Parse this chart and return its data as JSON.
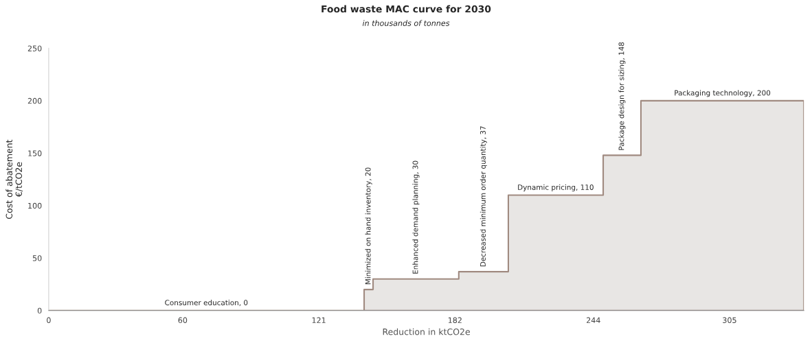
{
  "chart_data": {
    "type": "area",
    "title": "Food waste MAC curve for 2030",
    "subtitle": "in thousands of tonnes",
    "xlabel": "Reduction in ktCO2e",
    "ylabel": "Cost of abatement\n€/tCO2e",
    "series": [
      {
        "color": "#e8e6e4",
        "x": [
          0,
          141.3,
          145.3,
          183.7,
          205.9,
          248.4,
          265.3,
          338.3
        ],
        "values": [
          0,
          20,
          30,
          37,
          110,
          148,
          200,
          200
        ]
      }
    ],
    "xlim": [
      0,
      338.3
    ],
    "ylim": [
      0,
      250
    ],
    "xticks": [
      0,
      60,
      121,
      182,
      244,
      305
    ],
    "yticks": [
      0,
      50,
      100,
      150,
      200,
      250
    ],
    "grid": false,
    "legend": false,
    "annotations": [
      {
        "text": "Consumer education, 0",
        "x": 70.6,
        "y": 0
      },
      {
        "text": "Minimized on hand inventory, 20",
        "x": 143.3,
        "y": 20
      },
      {
        "text": "Enhanced demand planning, 30",
        "x": 164.5,
        "y": 30
      },
      {
        "text": "Decreased minimum order quantity, 37",
        "x": 194.8,
        "y": 37
      },
      {
        "text": "Dynamic pricing, 110",
        "x": 227.1,
        "y": 110
      },
      {
        "text": "Package design for sizing, 148",
        "x": 256.8,
        "y": 148
      },
      {
        "text": "Packaging technology, 200",
        "x": 301.8,
        "y": 200
      }
    ]
  }
}
